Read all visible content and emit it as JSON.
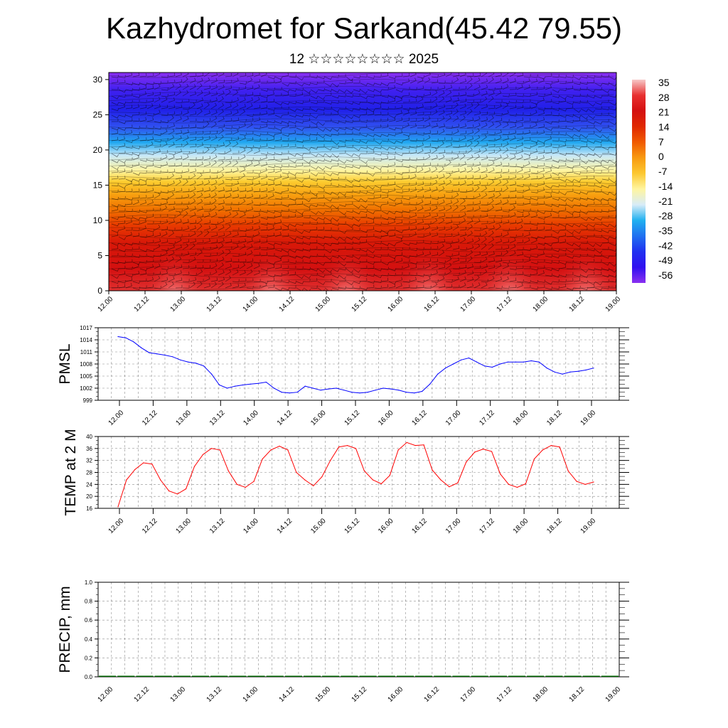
{
  "header": {
    "title": "Kazhydromet for Sarkand(45.42 79.55)",
    "subtitle": "12 ☆☆☆☆☆☆☆☆ 2025"
  },
  "chart_data": [
    {
      "type": "heatmap",
      "name": "temperature-wind-cross-section",
      "title": "",
      "y_ticks": [
        "0",
        "5",
        "10",
        "15",
        "20",
        "25",
        "30"
      ],
      "ylim": [
        0,
        31
      ],
      "x_ticks": [
        "12.00",
        "12.12",
        "13.00",
        "13.12",
        "14.00",
        "14.12",
        "15.00",
        "15.12",
        "16.00",
        "16.12",
        "17.00",
        "17.12",
        "18.00",
        "18.12",
        "19.00"
      ],
      "colorbar_labels": [
        "35",
        "28",
        "21",
        "14",
        "7",
        "0",
        "-7",
        "-14",
        "-21",
        "-28",
        "-35",
        "-42",
        "-49",
        "-56"
      ],
      "colorbar_colors": [
        "#f7c8c8",
        "#e83030",
        "#d41010",
        "#e02800",
        "#f05a00",
        "#f89a10",
        "#fcc830",
        "#fff5a0",
        "#d8ecf8",
        "#20b0f0",
        "#2070f0",
        "#2030f0",
        "#3010f0",
        "#8a30f0"
      ]
    },
    {
      "type": "line",
      "name": "pmsl",
      "ylabel": "PMSL",
      "ylim": [
        999,
        1017
      ],
      "y_ticks": [
        "999",
        "1002",
        "1005",
        "1008",
        "1011",
        "1014",
        "1017"
      ],
      "x_ticks": [
        "12.00",
        "12.12",
        "13.00",
        "13.12",
        "14.00",
        "14.12",
        "15.00",
        "15.12",
        "16.00",
        "16.12",
        "17.00",
        "17.12",
        "18.00",
        "18.12",
        "19.00"
      ],
      "color": "#0000ff",
      "values": [
        1014.8,
        1014.5,
        1013.5,
        1012.0,
        1010.8,
        1010.5,
        1010.2,
        1009.8,
        1009.0,
        1008.5,
        1008.2,
        1007.5,
        1005.5,
        1002.8,
        1002.0,
        1002.5,
        1002.8,
        1003.0,
        1003.2,
        1003.5,
        1002.0,
        1001.0,
        1000.8,
        1001.0,
        1002.5,
        1002.0,
        1001.5,
        1001.8,
        1002.0,
        1001.5,
        1001.0,
        1000.8,
        1001.0,
        1001.5,
        1002.0,
        1001.8,
        1001.5,
        1001.0,
        1000.8,
        1001.2,
        1003.0,
        1005.5,
        1007.0,
        1008.0,
        1009.0,
        1009.5,
        1008.5,
        1007.5,
        1007.2,
        1008.0,
        1008.5,
        1008.5,
        1008.5,
        1008.8,
        1008.5,
        1007.0,
        1006.0,
        1005.5,
        1006.0,
        1006.2,
        1006.5,
        1007.0
      ]
    },
    {
      "type": "line",
      "name": "temp-2m",
      "ylabel": "TEMP at 2 M",
      "ylim": [
        16,
        40
      ],
      "y_ticks": [
        "16",
        "20",
        "24",
        "28",
        "32",
        "36",
        "40"
      ],
      "x_ticks": [
        "12.00",
        "12.12",
        "13.00",
        "13.12",
        "14.00",
        "14.12",
        "15.00",
        "15.12",
        "16.00",
        "16.12",
        "17.00",
        "17.12",
        "18.00",
        "18.12",
        "19.00"
      ],
      "color": "#ff0000",
      "values": [
        16.5,
        25.5,
        29.0,
        31.2,
        30.8,
        25.5,
        21.8,
        20.8,
        22.5,
        30.0,
        34.0,
        36.0,
        35.5,
        28.5,
        24.0,
        23.0,
        25.0,
        32.5,
        35.5,
        36.8,
        35.5,
        28.0,
        25.5,
        23.5,
        26.5,
        32.0,
        36.5,
        37.0,
        36.0,
        28.5,
        25.5,
        24.2,
        27.0,
        35.5,
        38.0,
        37.0,
        37.2,
        28.8,
        25.5,
        23.2,
        24.5,
        31.5,
        34.8,
        35.8,
        35.0,
        27.5,
        24.0,
        23.0,
        24.2,
        32.5,
        35.5,
        37.0,
        36.5,
        28.5,
        25.0,
        24.0,
        24.8
      ]
    },
    {
      "type": "bar",
      "name": "precip",
      "ylabel": "PRECIP, mm",
      "ylim": [
        0,
        1.0
      ],
      "y_ticks": [
        "0.0",
        "0.2",
        "0.4",
        "0.6",
        "0.8",
        "1.0"
      ],
      "x_ticks": [
        "12.00",
        "12.12",
        "13.00",
        "13.12",
        "14.00",
        "14.12",
        "15.00",
        "15.12",
        "16.00",
        "16.12",
        "17.00",
        "17.12",
        "18.00",
        "18.12",
        "19.00"
      ],
      "color": "#006400",
      "values": [
        0,
        0,
        0,
        0,
        0,
        0,
        0,
        0,
        0,
        0,
        0,
        0,
        0,
        0,
        0,
        0,
        0,
        0,
        0,
        0,
        0,
        0,
        0,
        0,
        0,
        0,
        0,
        0
      ]
    }
  ]
}
